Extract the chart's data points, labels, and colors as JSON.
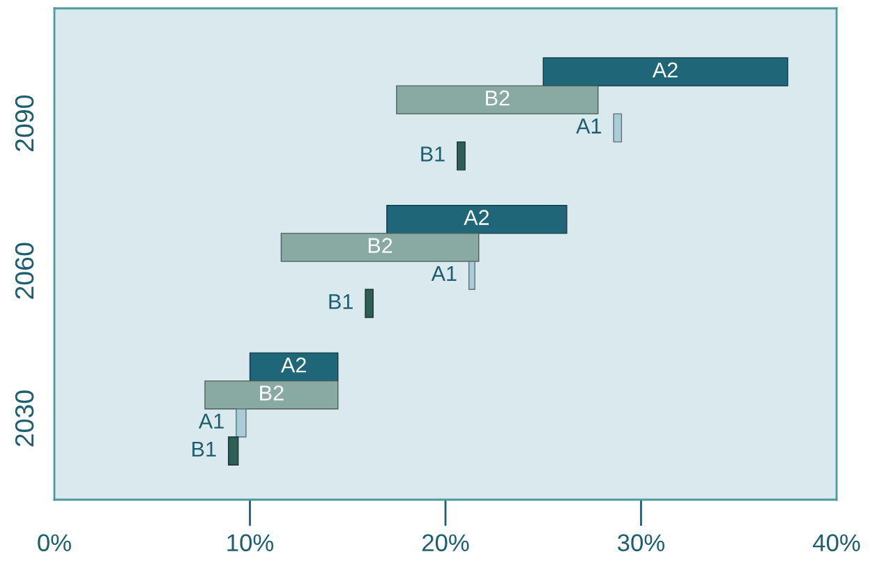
{
  "chart_data": {
    "type": "bar",
    "orientation": "horizontal",
    "categories": [
      "2090",
      "2060",
      "2030"
    ],
    "series": [
      {
        "name": "A2",
        "color": "#1e6678",
        "values": [
          12.5,
          9.2,
          4.5
        ],
        "base": [
          25,
          17,
          10
        ]
      },
      {
        "name": "B2",
        "color": "#89aaa2",
        "values": [
          10.3,
          10.1,
          6.8
        ],
        "base": [
          17.5,
          11.6,
          7.7
        ]
      },
      {
        "name": "A1",
        "color": "#a9ccd6",
        "values": [
          0.4,
          0.3,
          0.5
        ],
        "base": [
          28.6,
          21.2,
          9.3
        ]
      },
      {
        "name": "B1",
        "color": "#2e5e56",
        "values": [
          0.4,
          0.4,
          0.5
        ],
        "base": [
          20.6,
          15.9,
          8.9
        ]
      }
    ],
    "xlim": [
      0,
      40
    ],
    "xticks": [
      {
        "value": 0,
        "label": "0%"
      },
      {
        "value": 10,
        "label": "10%"
      },
      {
        "value": 20,
        "label": "20%"
      },
      {
        "value": 30,
        "label": "30%"
      },
      {
        "value": 40,
        "label": "40%"
      }
    ]
  }
}
